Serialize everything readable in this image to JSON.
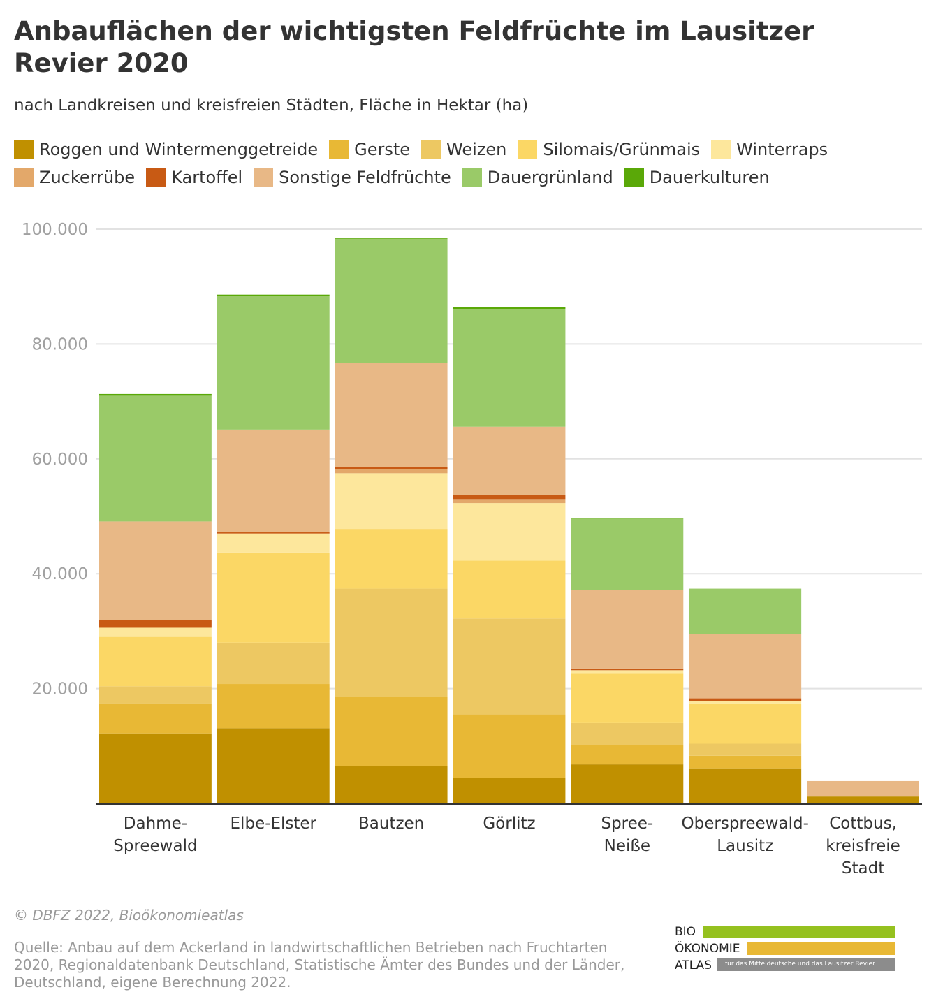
{
  "header": {
    "title": "Anbauflächen der wichtigsten Feldfrüchte im Lausitzer Revier 2020",
    "subtitle": "nach Landkreisen und kreisfreien Städten, Fläche in Hektar (ha)"
  },
  "legend": [
    {
      "label": "Roggen und Wintermenggetreide",
      "color": "#c09000"
    },
    {
      "label": "Gerste",
      "color": "#e8b835"
    },
    {
      "label": "Weizen",
      "color": "#edc862"
    },
    {
      "label": "Silomais/Grünmais",
      "color": "#fbd765"
    },
    {
      "label": "Winterraps",
      "color": "#fde79c"
    },
    {
      "label": "Zuckerrübe",
      "color": "#e3a86a"
    },
    {
      "label": "Kartoffel",
      "color": "#c85a14"
    },
    {
      "label": "Sonstige Feldfrüchte",
      "color": "#e8b886"
    },
    {
      "label": "Dauergrünland",
      "color": "#9aca68"
    },
    {
      "label": "Dauerkulturen",
      "color": "#5aa808"
    }
  ],
  "chart_data": {
    "type": "bar",
    "stacked": true,
    "categories": [
      [
        "Dahme-",
        "Spreewald"
      ],
      [
        "Elbe-Elster"
      ],
      [
        "Bautzen"
      ],
      [
        "Görlitz"
      ],
      [
        "Spree-",
        "Neiße"
      ],
      [
        "Oberspreewald-",
        "Lausitz"
      ],
      [
        "Cottbus,",
        "kreisfreie",
        "Stadt"
      ]
    ],
    "series": [
      {
        "name": "Roggen und Wintermenggetreide",
        "color": "#c09000",
        "values": [
          12200,
          13100,
          6500,
          4500,
          6800,
          6000,
          1200
        ]
      },
      {
        "name": "Gerste",
        "color": "#e8b835",
        "values": [
          5200,
          7700,
          12100,
          11000,
          3400,
          2300,
          0
        ]
      },
      {
        "name": "Weizen",
        "color": "#edc862",
        "values": [
          3000,
          7200,
          18800,
          16700,
          3800,
          2100,
          0
        ]
      },
      {
        "name": "Silomais/Grünmais",
        "color": "#fbd765",
        "values": [
          8600,
          15700,
          10400,
          10100,
          8600,
          7000,
          0
        ]
      },
      {
        "name": "Winterraps",
        "color": "#fde79c",
        "values": [
          1600,
          3300,
          9700,
          10000,
          600,
          400,
          0
        ]
      },
      {
        "name": "Zuckerrübe",
        "color": "#e3a86a",
        "values": [
          0,
          0,
          700,
          700,
          0,
          0,
          0
        ]
      },
      {
        "name": "Kartoffel",
        "color": "#c85a14",
        "values": [
          1300,
          200,
          400,
          700,
          300,
          500,
          0
        ]
      },
      {
        "name": "Sonstige Feldfrüchte",
        "color": "#e8b886",
        "values": [
          17200,
          17900,
          18100,
          11900,
          13700,
          11200,
          2700
        ]
      },
      {
        "name": "Dauergrünland",
        "color": "#9aca68",
        "values": [
          21900,
          23300,
          21600,
          20500,
          12400,
          7900,
          0
        ]
      },
      {
        "name": "Dauerkulturen",
        "color": "#5aa808",
        "values": [
          300,
          200,
          100,
          300,
          100,
          0,
          0
        ]
      }
    ],
    "ylim": [
      0,
      100000
    ],
    "yticks": [
      "20.000",
      "40.000",
      "60.000",
      "80.000",
      "100.000"
    ],
    "ytick_values": [
      20000,
      40000,
      60000,
      80000,
      100000
    ],
    "grid": true,
    "legend_position": "top"
  },
  "footer": {
    "credit": "© DBFZ 2022, Bioökonomieatlas",
    "source": "Quelle: Anbau auf dem Ackerland in landwirtschaftlichen Betrieben nach Fruchtarten 2020, Regionaldatenbank Deutschland, Statistische Ämter des Bundes und der Länder, Deutschland, eigene Berechnung 2022."
  },
  "logo": {
    "line1": "BIO",
    "line2": "ÖKONOMIE",
    "line3": "ATLAS",
    "tagline": "für das Mitteldeutsche und das Lausitzer Revier",
    "colors": {
      "green": "#95c11f",
      "yellow": "#e8b835",
      "gray": "#8c8c8c"
    }
  }
}
